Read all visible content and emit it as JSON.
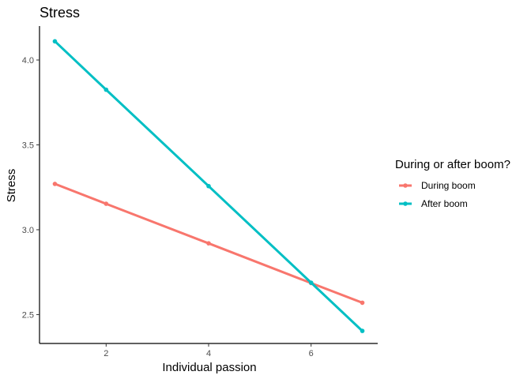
{
  "chart_data": {
    "type": "line",
    "title": "Stress",
    "xlabel": "Individual passion",
    "ylabel": "Stress",
    "x": [
      1,
      2,
      4,
      6,
      7
    ],
    "xlim": [
      0.7,
      7.3
    ],
    "ylim": [
      2.33,
      4.2
    ],
    "x_ticks": [
      2,
      4,
      6
    ],
    "x_tick_labels": [
      "2",
      "4",
      "6"
    ],
    "y_ticks": [
      2.5,
      3.0,
      3.5,
      4.0
    ],
    "y_tick_labels": [
      "2.5",
      "3.0",
      "3.5",
      "4.0"
    ],
    "grid": false,
    "legend": {
      "title": "During or after boom?",
      "placement": "right"
    },
    "series": [
      {
        "name": "During boom",
        "color": "#F8766D",
        "values": [
          3.27,
          3.153,
          2.92,
          2.686,
          2.57
        ]
      },
      {
        "name": "After boom",
        "color": "#00BFC4",
        "values": [
          4.11,
          3.825,
          3.257,
          2.688,
          2.404
        ]
      }
    ]
  }
}
